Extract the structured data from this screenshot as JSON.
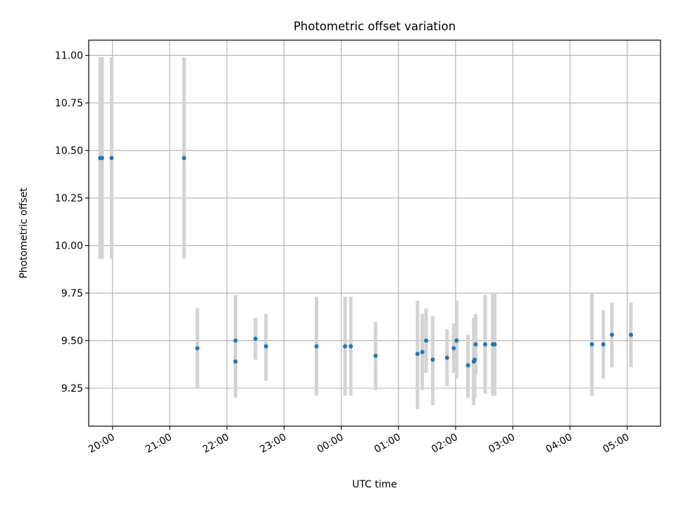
{
  "chart_data": {
    "type": "scatter",
    "title": "Photometric offset variation",
    "xlabel": "UTC time",
    "ylabel": "Photometric offset",
    "xlim": [
      "19:35",
      "05:35"
    ],
    "ylim": [
      9.05,
      11.08
    ],
    "grid": true,
    "x_ticks": [
      "20:00",
      "21:00",
      "22:00",
      "23:00",
      "00:00",
      "01:00",
      "02:00",
      "03:00",
      "04:00",
      "05:00"
    ],
    "y_ticks": [
      "9.25",
      "9.50",
      "9.75",
      "10.00",
      "10.25",
      "10.50",
      "10.75",
      "11.00"
    ],
    "point_color": "#1f77b4",
    "errorbar_color": "#d3d3d3",
    "points": [
      {
        "x": "19:47",
        "y": 10.46,
        "low": 9.93,
        "high": 10.99
      },
      {
        "x": "19:49",
        "y": 10.46,
        "low": 9.93,
        "high": 10.99
      },
      {
        "x": "19:59",
        "y": 10.46,
        "low": 9.93,
        "high": 10.99
      },
      {
        "x": "21:15",
        "y": 10.46,
        "low": 9.93,
        "high": 10.99
      },
      {
        "x": "21:29",
        "y": 9.46,
        "low": 9.25,
        "high": 9.67
      },
      {
        "x": "22:09",
        "y": 9.5,
        "low": 9.25,
        "high": 9.74
      },
      {
        "x": "22:09",
        "y": 9.39,
        "low": 9.2,
        "high": 9.58
      },
      {
        "x": "22:30",
        "y": 9.51,
        "low": 9.4,
        "high": 9.62
      },
      {
        "x": "22:41",
        "y": 9.47,
        "low": 9.29,
        "high": 9.64
      },
      {
        "x": "23:34",
        "y": 9.47,
        "low": 9.21,
        "high": 9.73
      },
      {
        "x": "00:04",
        "y": 9.47,
        "low": 9.21,
        "high": 9.73
      },
      {
        "x": "00:10",
        "y": 9.47,
        "low": 9.21,
        "high": 9.73
      },
      {
        "x": "00:36",
        "y": 9.42,
        "low": 9.24,
        "high": 9.6
      },
      {
        "x": "01:20",
        "y": 9.43,
        "low": 9.14,
        "high": 9.71
      },
      {
        "x": "01:25",
        "y": 9.44,
        "low": 9.24,
        "high": 9.64
      },
      {
        "x": "01:29",
        "y": 9.5,
        "low": 9.33,
        "high": 9.67
      },
      {
        "x": "01:36",
        "y": 9.4,
        "low": 9.16,
        "high": 9.63
      },
      {
        "x": "01:51",
        "y": 9.41,
        "low": 9.26,
        "high": 9.56
      },
      {
        "x": "01:58",
        "y": 9.46,
        "low": 9.33,
        "high": 9.59
      },
      {
        "x": "02:01",
        "y": 9.5,
        "low": 9.3,
        "high": 9.71
      },
      {
        "x": "02:13",
        "y": 9.37,
        "low": 9.2,
        "high": 9.53
      },
      {
        "x": "02:19",
        "y": 9.39,
        "low": 9.16,
        "high": 9.62
      },
      {
        "x": "02:20",
        "y": 9.4,
        "low": 9.2,
        "high": 9.6
      },
      {
        "x": "02:21",
        "y": 9.48,
        "low": 9.32,
        "high": 9.64
      },
      {
        "x": "02:31",
        "y": 9.48,
        "low": 9.22,
        "high": 9.74
      },
      {
        "x": "02:39",
        "y": 9.48,
        "low": 9.21,
        "high": 9.75
      },
      {
        "x": "02:41",
        "y": 9.48,
        "low": 9.21,
        "high": 9.75
      },
      {
        "x": "04:23",
        "y": 9.48,
        "low": 9.21,
        "high": 9.75
      },
      {
        "x": "04:35",
        "y": 9.48,
        "low": 9.3,
        "high": 9.66
      },
      {
        "x": "04:44",
        "y": 9.53,
        "low": 9.36,
        "high": 9.7
      },
      {
        "x": "05:04",
        "y": 9.53,
        "low": 9.36,
        "high": 9.7
      }
    ]
  }
}
